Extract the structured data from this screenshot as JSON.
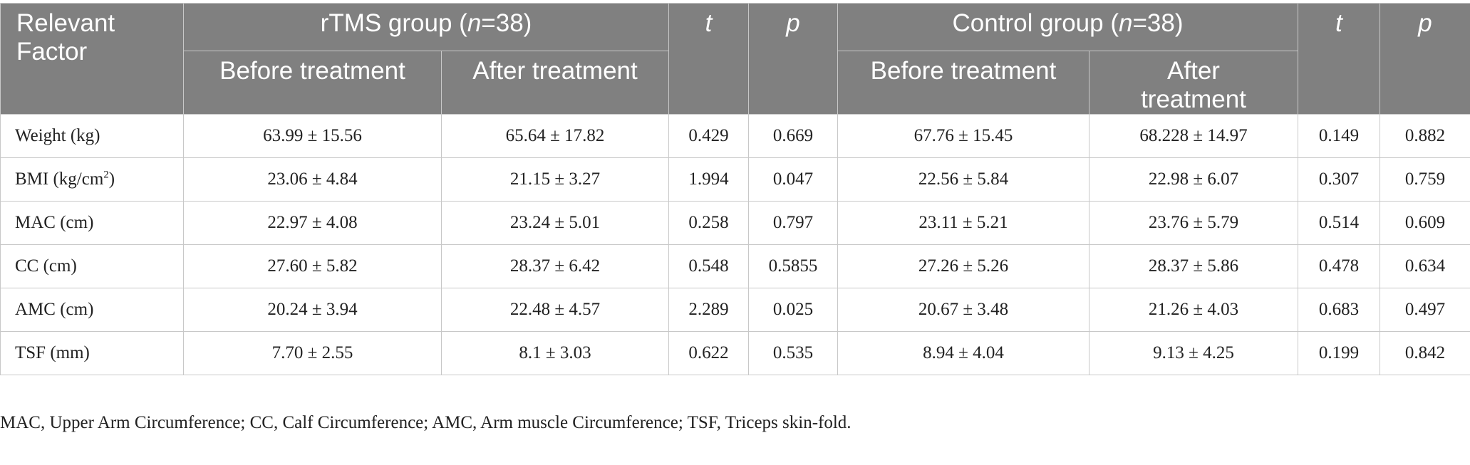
{
  "header": {
    "factor": "Relevant Factor",
    "rtms_group_prefix": "rTMS group (",
    "rtms_group_n": "n",
    "rtms_group_suffix": "=38)",
    "control_group_prefix": "Control group (",
    "control_group_n": "n",
    "control_group_suffix": "=38)",
    "t": "t",
    "p": "p",
    "before": "Before treatment",
    "after": "After treatment"
  },
  "rows": [
    {
      "factor": "Weight (kg)",
      "factor_sup": "",
      "factor_tail": "",
      "rtms_before": "63.99 ± 15.56",
      "rtms_after": "65.64 ± 17.82",
      "rtms_t": "0.429",
      "rtms_p": "0.669",
      "ctrl_before": "67.76 ± 15.45",
      "ctrl_after": "68.228 ± 14.97",
      "ctrl_t": "0.149",
      "ctrl_p": "0.882"
    },
    {
      "factor": "BMI (kg/cm",
      "factor_sup": "2",
      "factor_tail": ")",
      "rtms_before": "23.06 ± 4.84",
      "rtms_after": "21.15 ± 3.27",
      "rtms_t": "1.994",
      "rtms_p": "0.047",
      "ctrl_before": "22.56 ± 5.84",
      "ctrl_after": "22.98 ± 6.07",
      "ctrl_t": "0.307",
      "ctrl_p": "0.759"
    },
    {
      "factor": "MAC (cm)",
      "factor_sup": "",
      "factor_tail": "",
      "rtms_before": "22.97 ± 4.08",
      "rtms_after": "23.24 ± 5.01",
      "rtms_t": "0.258",
      "rtms_p": "0.797",
      "ctrl_before": "23.11 ± 5.21",
      "ctrl_after": "23.76 ± 5.79",
      "ctrl_t": "0.514",
      "ctrl_p": "0.609"
    },
    {
      "factor": "CC (cm)",
      "factor_sup": "",
      "factor_tail": "",
      "rtms_before": "27.60 ± 5.82",
      "rtms_after": "28.37 ± 6.42",
      "rtms_t": "0.548",
      "rtms_p": "0.5855",
      "ctrl_before": "27.26 ± 5.26",
      "ctrl_after": "28.37 ± 5.86",
      "ctrl_t": "0.478",
      "ctrl_p": "0.634"
    },
    {
      "factor": "AMC (cm)",
      "factor_sup": "",
      "factor_tail": "",
      "rtms_before": "20.24 ± 3.94",
      "rtms_after": "22.48 ± 4.57",
      "rtms_t": "2.289",
      "rtms_p": "0.025",
      "ctrl_before": "20.67 ± 3.48",
      "ctrl_after": "21.26 ± 4.03",
      "ctrl_t": "0.683",
      "ctrl_p": "0.497"
    },
    {
      "factor": "TSF (mm)",
      "factor_sup": "",
      "factor_tail": "",
      "rtms_before": "7.70 ± 2.55",
      "rtms_after": "8.1 ± 3.03",
      "rtms_t": "0.622",
      "rtms_p": "0.535",
      "ctrl_before": "8.94 ± 4.04",
      "ctrl_after": "9.13 ± 4.25",
      "ctrl_t": "0.199",
      "ctrl_p": "0.842"
    }
  ],
  "footnote": "MAC, Upper Arm Circumference; CC, Calf Circumference; AMC, Arm muscle Circumference; TSF, Triceps skin-fold."
}
